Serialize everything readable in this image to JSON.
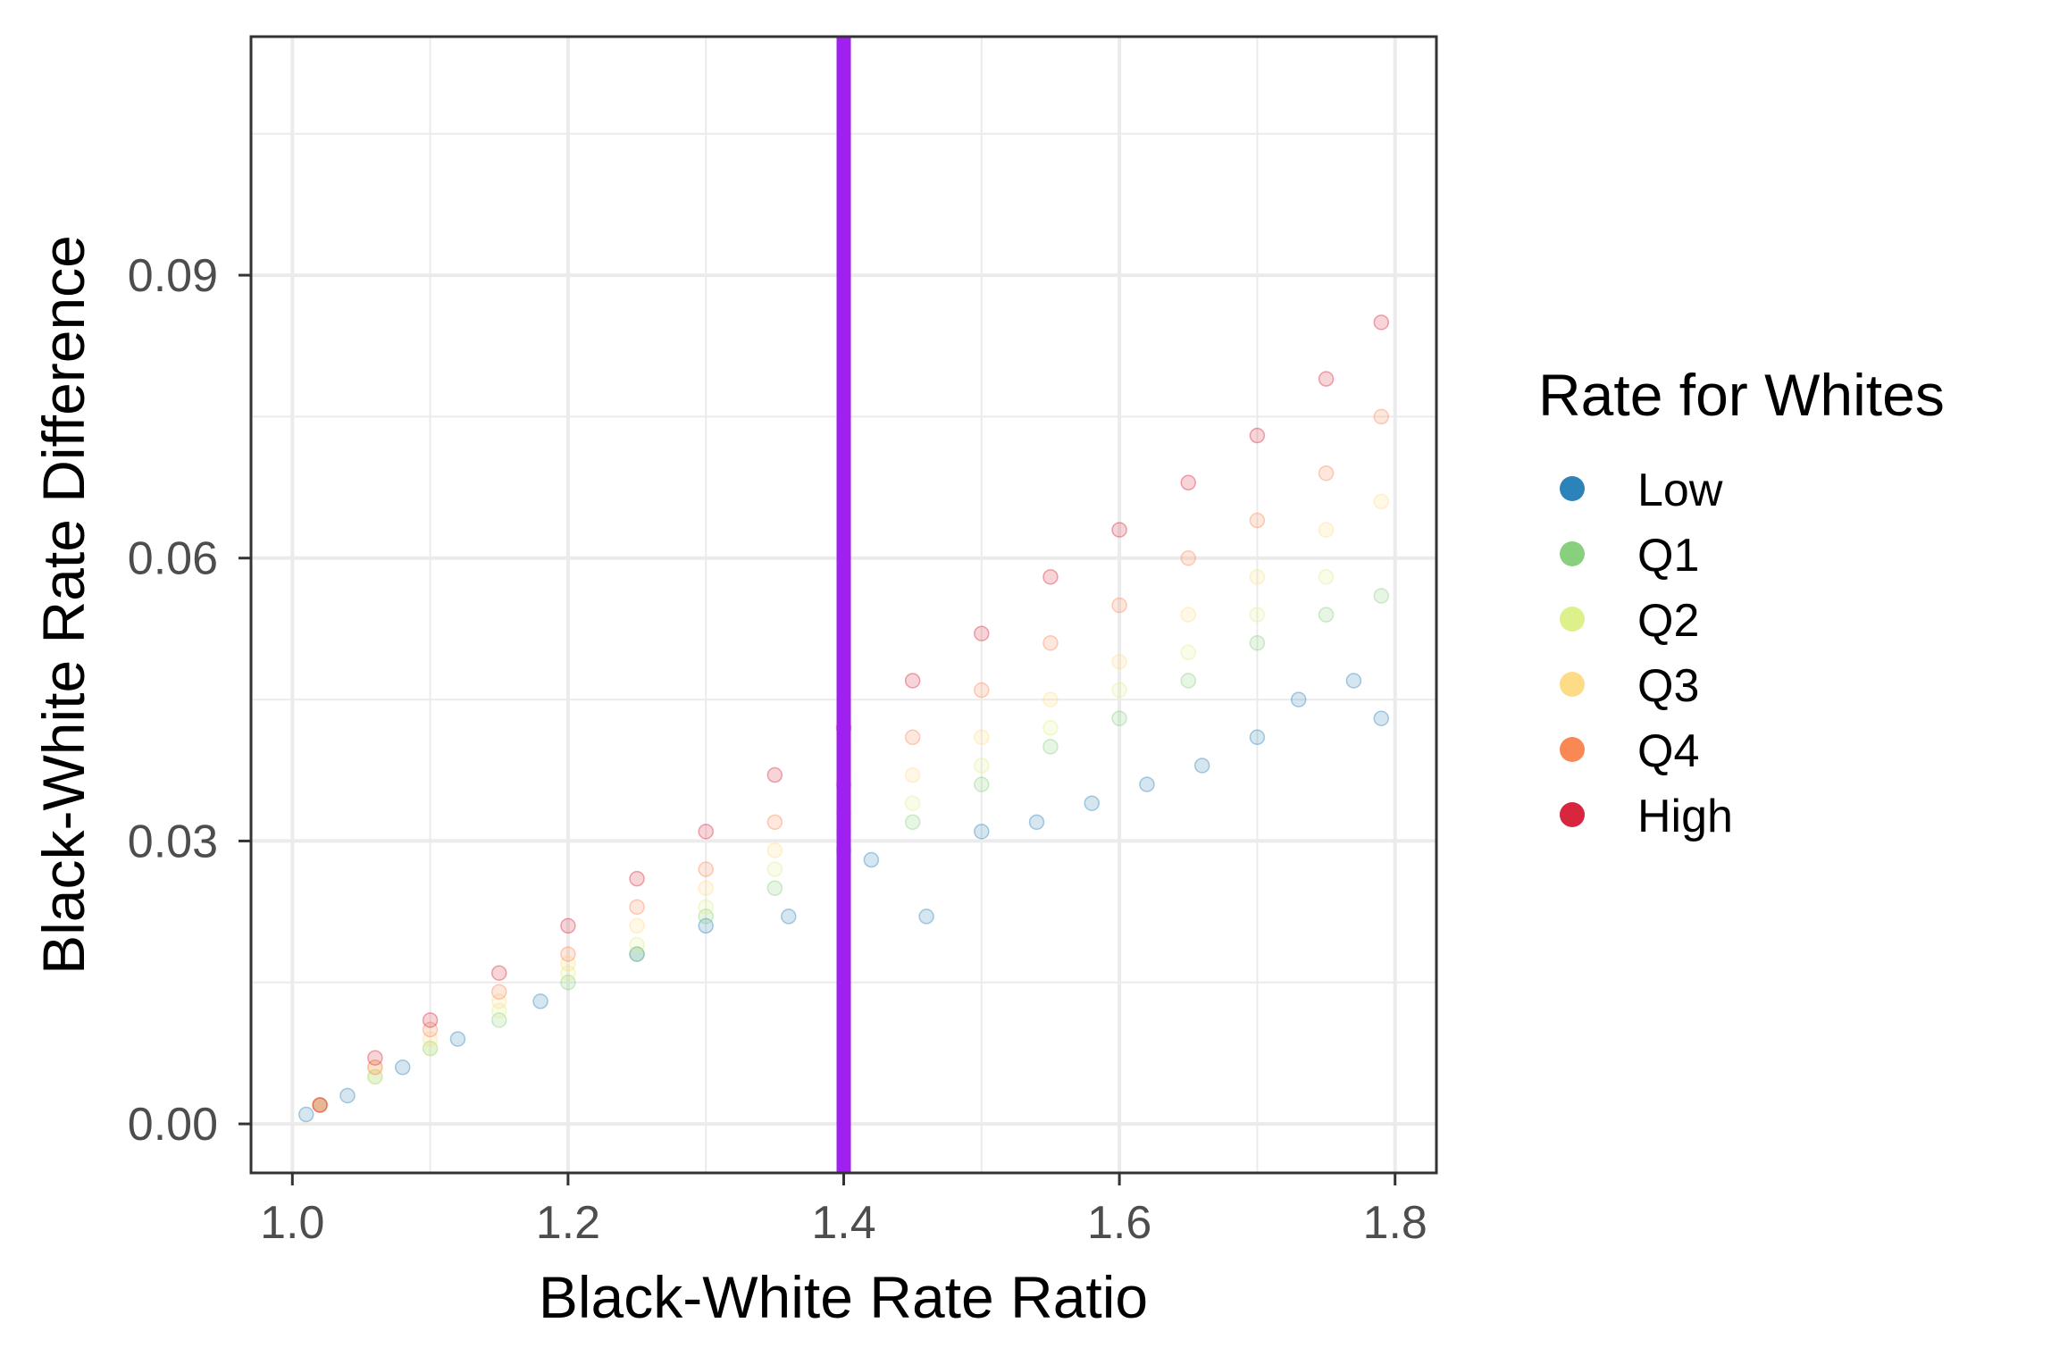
{
  "chart_data": {
    "type": "scatter",
    "title": "",
    "xlabel": "Black-White Rate Ratio",
    "ylabel": "Black-White Rate Difference",
    "xlim": [
      0.97,
      1.83
    ],
    "ylim": [
      -0.0052,
      0.1153
    ],
    "x_ticks": [
      1.0,
      1.2,
      1.4,
      1.6,
      1.8
    ],
    "x_tick_labels": [
      "1.0",
      "1.2",
      "1.4",
      "1.6",
      "1.8"
    ],
    "y_ticks": [
      0.0,
      0.03,
      0.06,
      0.09
    ],
    "y_tick_labels": [
      "0.00",
      "0.03",
      "0.06",
      "0.09"
    ],
    "grid": true,
    "reference_line": {
      "axis": "x",
      "value": 1.4,
      "color": "#A020F0"
    },
    "legend": {
      "title": "Rate for Whites",
      "position": "right",
      "entries": [
        {
          "label": "Low",
          "color": "#2B83BA"
        },
        {
          "label": "Q1",
          "color": "#88CF7E"
        },
        {
          "label": "Q2",
          "color": "#DDF18A"
        },
        {
          "label": "Q3",
          "color": "#FEDB87"
        },
        {
          "label": "Q4",
          "color": "#F98855"
        },
        {
          "label": "High",
          "color": "#D7263D"
        }
      ]
    },
    "point_opacity": 0.2,
    "series": [
      {
        "name": "Low",
        "color": "#2B83BA",
        "x": [
          1.01,
          1.04,
          1.08,
          1.12,
          1.18,
          1.25,
          1.3,
          1.36,
          1.42,
          1.46,
          1.5,
          1.54,
          1.58,
          1.62,
          1.66,
          1.7,
          1.73,
          1.77,
          1.79
        ],
        "y": [
          0.001,
          0.003,
          0.006,
          0.009,
          0.013,
          0.018,
          0.021,
          0.022,
          0.028,
          0.022,
          0.031,
          0.032,
          0.034,
          0.036,
          0.038,
          0.041,
          0.045,
          0.047,
          0.043
        ]
      },
      {
        "name": "Q1",
        "color": "#88CF7E",
        "x": [
          1.02,
          1.06,
          1.1,
          1.15,
          1.2,
          1.25,
          1.3,
          1.35,
          1.4,
          1.45,
          1.5,
          1.55,
          1.6,
          1.65,
          1.7,
          1.75,
          1.79
        ],
        "y": [
          0.002,
          0.005,
          0.008,
          0.011,
          0.015,
          0.018,
          0.022,
          0.025,
          0.029,
          0.032,
          0.036,
          0.04,
          0.043,
          0.047,
          0.051,
          0.054,
          0.056
        ]
      },
      {
        "name": "Q2",
        "color": "#DDF18A",
        "x": [
          1.02,
          1.06,
          1.1,
          1.15,
          1.2,
          1.25,
          1.3,
          1.35,
          1.4,
          1.45,
          1.5,
          1.55,
          1.6,
          1.65,
          1.7,
          1.75
        ],
        "y": [
          0.002,
          0.005,
          0.008,
          0.012,
          0.016,
          0.019,
          0.023,
          0.027,
          0.031,
          0.034,
          0.038,
          0.042,
          0.046,
          0.05,
          0.054,
          0.058
        ]
      },
      {
        "name": "Q3",
        "color": "#FEDB87",
        "x": [
          1.02,
          1.06,
          1.1,
          1.15,
          1.2,
          1.25,
          1.3,
          1.35,
          1.4,
          1.45,
          1.5,
          1.55,
          1.6,
          1.65,
          1.7,
          1.75,
          1.79
        ],
        "y": [
          0.002,
          0.006,
          0.009,
          0.013,
          0.017,
          0.021,
          0.025,
          0.029,
          0.033,
          0.037,
          0.041,
          0.045,
          0.049,
          0.054,
          0.058,
          0.063,
          0.066
        ]
      },
      {
        "name": "Q4",
        "color": "#F98855",
        "x": [
          1.02,
          1.06,
          1.1,
          1.15,
          1.2,
          1.25,
          1.3,
          1.35,
          1.4,
          1.45,
          1.5,
          1.55,
          1.6,
          1.65,
          1.7,
          1.75,
          1.79
        ],
        "y": [
          0.002,
          0.006,
          0.01,
          0.014,
          0.018,
          0.023,
          0.027,
          0.032,
          0.036,
          0.041,
          0.046,
          0.051,
          0.055,
          0.06,
          0.064,
          0.069,
          0.075
        ]
      },
      {
        "name": "High",
        "color": "#D7263D",
        "x": [
          1.02,
          1.06,
          1.1,
          1.15,
          1.2,
          1.25,
          1.3,
          1.35,
          1.4,
          1.45,
          1.5,
          1.55,
          1.6,
          1.65,
          1.7,
          1.75,
          1.79
        ],
        "y": [
          0.002,
          0.007,
          0.011,
          0.016,
          0.021,
          0.026,
          0.031,
          0.037,
          0.042,
          0.047,
          0.052,
          0.058,
          0.063,
          0.068,
          0.073,
          0.079,
          0.085
        ]
      }
    ]
  }
}
